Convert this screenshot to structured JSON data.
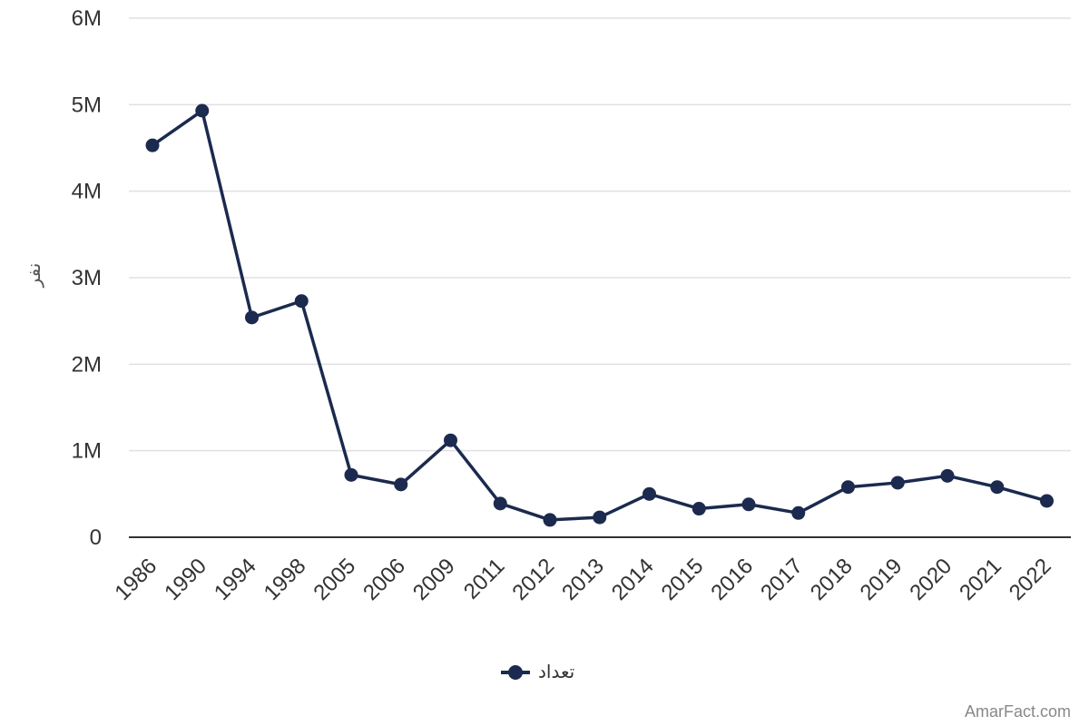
{
  "chart_data": {
    "type": "line",
    "x": [
      "1986",
      "1990",
      "1994",
      "1998",
      "2005",
      "2006",
      "2009",
      "2011",
      "2012",
      "2013",
      "2014",
      "2015",
      "2016",
      "2017",
      "2018",
      "2019",
      "2020",
      "2021",
      "2022"
    ],
    "series": [
      {
        "name": "تعداد",
        "values": [
          4530000,
          4930000,
          2540000,
          2730000,
          720000,
          610000,
          1120000,
          390000,
          200000,
          230000,
          500000,
          330000,
          380000,
          280000,
          580000,
          630000,
          710000,
          580000,
          420000
        ],
        "color": "#1b2a4e"
      }
    ],
    "ylabel": "نفر",
    "ylim": [
      0,
      6000000
    ],
    "yticks": [
      {
        "value": 0,
        "label": "0"
      },
      {
        "value": 1000000,
        "label": "1M"
      },
      {
        "value": 2000000,
        "label": "2M"
      },
      {
        "value": 3000000,
        "label": "3M"
      },
      {
        "value": 4000000,
        "label": "4M"
      },
      {
        "value": 5000000,
        "label": "5M"
      },
      {
        "value": 6000000,
        "label": "6M"
      }
    ],
    "grid": true,
    "legend_position": "bottom-center"
  },
  "watermark": "AmarFact.com",
  "colors": {
    "grid": "#e0e0e0",
    "axis": "#333333"
  }
}
